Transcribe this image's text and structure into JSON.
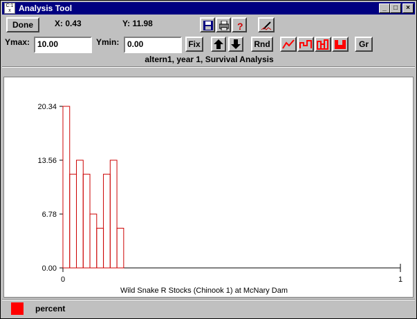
{
  "window": {
    "title": "Analysis Tool",
    "sys_icon_text": "C:1 x",
    "minimize": "_",
    "maximize": "□",
    "close": "×"
  },
  "toolbar": {
    "done_label": "Done",
    "x_readout": "X: 0.43",
    "y_readout": "Y: 11.98",
    "save_icon": "floppy-disk-icon",
    "print_icon": "printer-icon",
    "help_icon": "question-mark-icon",
    "edit_icon": "pencil-edit-icon"
  },
  "controls": {
    "ymax_label": "Ymax:",
    "ymax_value": "10.00",
    "ymin_label": "Ymin:",
    "ymin_value": "0.00",
    "fix_label": "Fix",
    "rnd_label": "Rnd",
    "gr_label": "Gr",
    "accent": "#ff0000"
  },
  "subtitle": "altern1, year 1, Survival Analysis",
  "chart_data": {
    "type": "bar",
    "title": "",
    "xlabel": "Wild Snake R Stocks (Chinook 1) at McNary Dam",
    "ylabel": "",
    "x_ticks": [
      "0",
      "1"
    ],
    "y_ticks": [
      "0.00",
      "6.78",
      "13.56",
      "20.34"
    ],
    "xlim": [
      0,
      1
    ],
    "ylim": [
      0,
      20.34
    ],
    "bin_width": 0.02,
    "bin_starts": [
      0.0,
      0.02,
      0.04,
      0.06,
      0.08,
      0.1,
      0.12,
      0.14,
      0.16
    ],
    "values": [
      20.34,
      11.8,
      13.56,
      11.8,
      6.78,
      5.0,
      11.8,
      13.56,
      5.0
    ],
    "bar_color": "#cc0000"
  },
  "legend": {
    "label": "percent",
    "color": "#ff0000"
  }
}
